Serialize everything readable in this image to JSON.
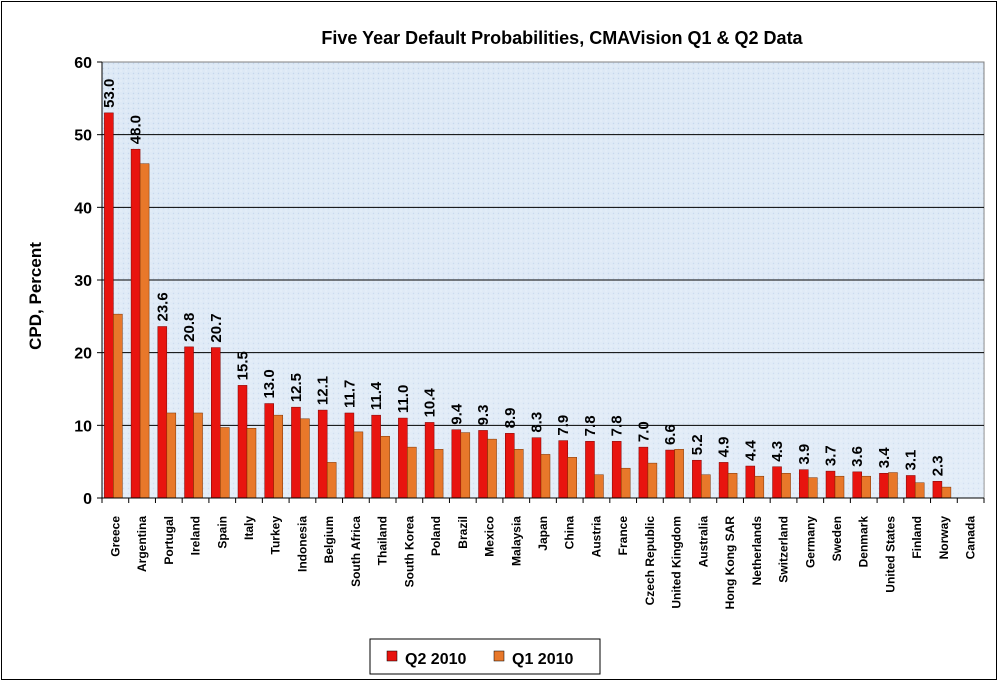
{
  "chart_data": {
    "type": "bar",
    "title": "Five Year Default Probabilities, CMAVision Q1 & Q2 Data",
    "xlabel": "",
    "ylabel": "CPD, Percent",
    "ylim": [
      0,
      60
    ],
    "yticks": [
      0,
      10,
      20,
      30,
      40,
      50,
      60
    ],
    "grid": true,
    "legend_position": "bottom",
    "categories": [
      "Greece",
      "Argentina",
      "Portugal",
      "Ireland",
      "Spain",
      "Italy",
      "Turkey",
      "Indonesia",
      "Belgium",
      "South Africa",
      "Thailand",
      "South Korea",
      "Poland",
      "Brazil",
      "Mexico",
      "Malaysia",
      "Japan",
      "China",
      "Austria",
      "France",
      "Czech Republic",
      "United Kingdom",
      "Australia",
      "Hong Kong SAR",
      "Netherlands",
      "Switzerland",
      "Germany",
      "Sweden",
      "Denmark",
      "United States",
      "Finland",
      "Norway",
      "Canada"
    ],
    "series": [
      {
        "name": "Q2 2010",
        "color": "#e8140f",
        "values": [
          53.0,
          48.0,
          23.6,
          20.8,
          20.7,
          15.5,
          13.0,
          12.5,
          12.1,
          11.7,
          11.4,
          11.0,
          10.4,
          9.4,
          9.3,
          8.9,
          8.3,
          7.9,
          7.8,
          7.8,
          7.0,
          6.6,
          5.2,
          4.9,
          4.4,
          4.3,
          3.9,
          3.7,
          3.6,
          3.4,
          3.1,
          2.3,
          0
        ],
        "data_labels": [
          "53.0",
          "48.0",
          "23.6",
          "20.8",
          "20.7",
          "15.5",
          "13.0",
          "12.5",
          "12.1",
          "11.7",
          "11.4",
          "11.0",
          "10.4",
          "9.4",
          "9.3",
          "8.9",
          "8.3",
          "7.9",
          "7.8",
          "7.8",
          "7.0",
          "6.6",
          "5.2",
          "4.9",
          "4.4",
          "4.3",
          "3.9",
          "3.7",
          "3.6",
          "3.4",
          "3.1",
          "2.3",
          ""
        ]
      },
      {
        "name": "Q1 2010",
        "color": "#e8782a",
        "values": [
          25.3,
          46.0,
          11.7,
          11.7,
          9.7,
          9.6,
          11.4,
          10.9,
          4.9,
          9.1,
          8.5,
          7.0,
          6.7,
          9.0,
          8.1,
          6.7,
          6.0,
          5.6,
          3.2,
          4.1,
          4.8,
          6.7,
          3.2,
          3.4,
          3.0,
          3.4,
          2.8,
          3.0,
          3.0,
          3.5,
          2.1,
          1.5,
          0
        ]
      }
    ]
  }
}
